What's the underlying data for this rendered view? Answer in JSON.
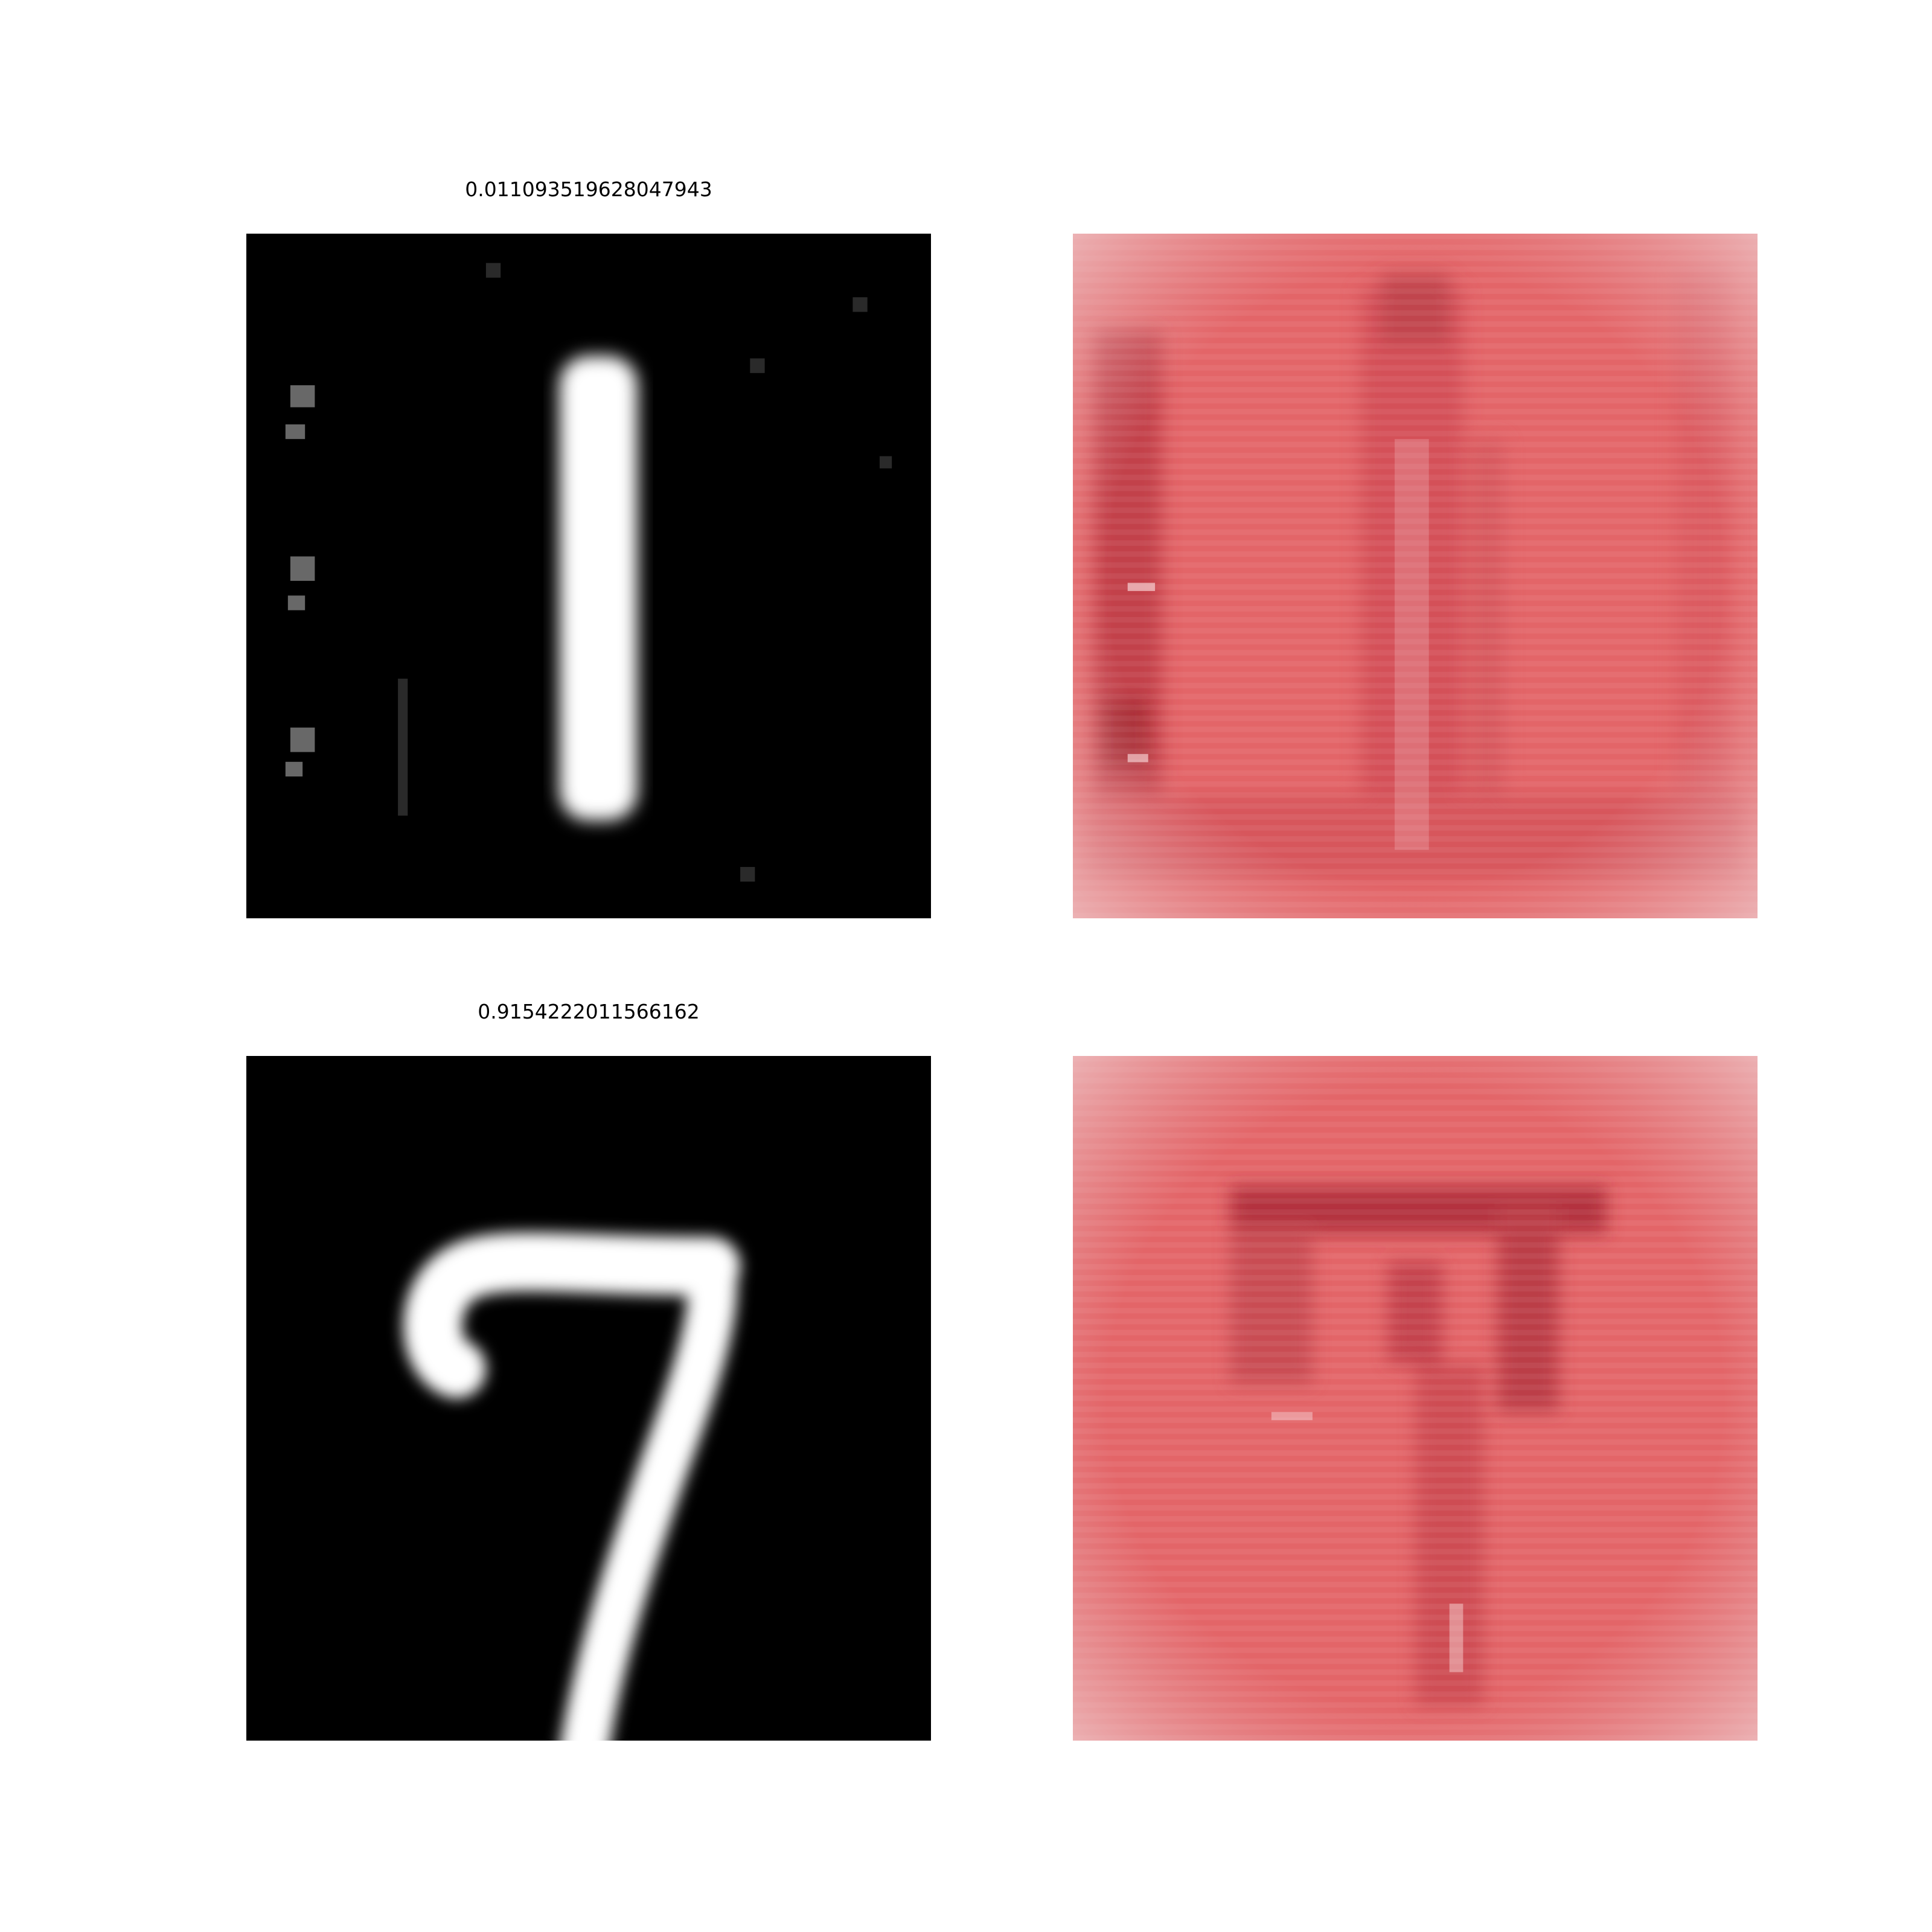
{
  "figure": {
    "rows": [
      {
        "score_label": "0.011093519628047943",
        "digit_shown": "1",
        "input_image": "grayscale-digit-1",
        "attribution_map": "red-heatmap-digit-1"
      },
      {
        "score_label": "0.9154222011566162",
        "digit_shown": "7",
        "input_image": "grayscale-digit-7",
        "attribution_map": "red-heatmap-digit-7"
      }
    ],
    "colors": {
      "background": "#ffffff",
      "digit_background": "#000000",
      "digit_stroke": "#ffffff",
      "heatmap_base": "#e36568",
      "heatmap_edge": "#e8b7b9",
      "heatmap_dark": "#a11e28"
    }
  }
}
